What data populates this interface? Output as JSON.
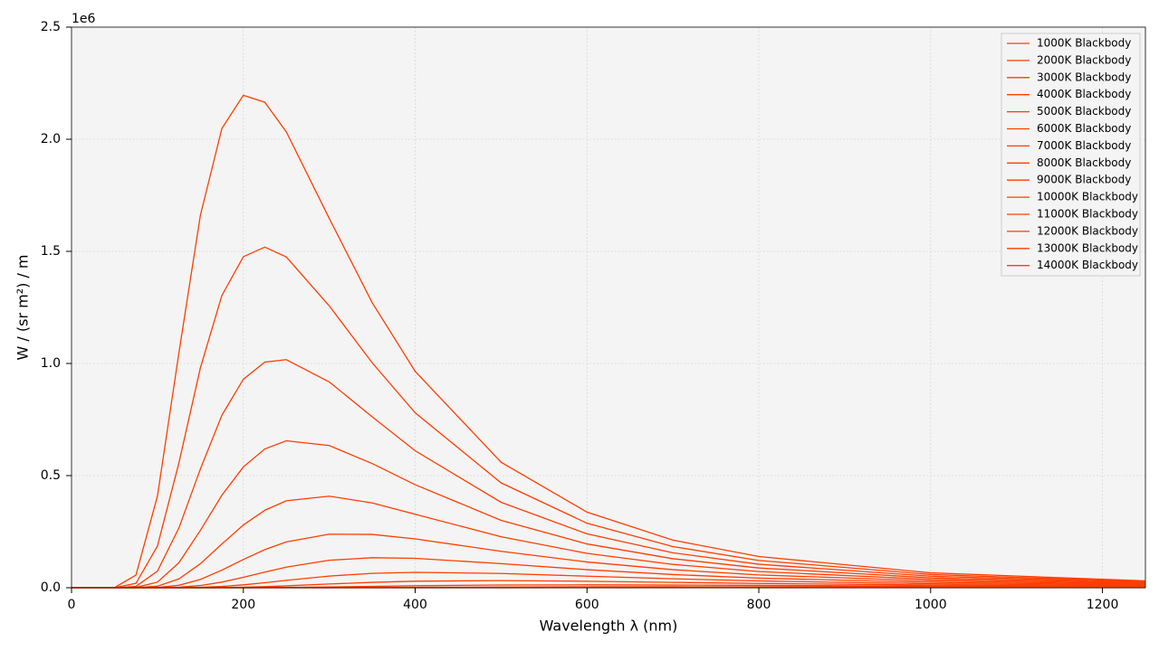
{
  "chart_data": {
    "type": "line",
    "x_label": "Wavelength λ (nm)",
    "y_label": "W / (sr m²) / m",
    "y_offset_label": "1e6",
    "x": [
      0,
      50,
      75,
      100,
      125,
      150,
      175,
      200,
      225,
      250,
      300,
      350,
      400,
      500,
      600,
      700,
      800,
      1000,
      1250
    ],
    "xlim": [
      0,
      1250
    ],
    "xticks": [
      0,
      200,
      400,
      600,
      800,
      1000,
      1200
    ],
    "ylim": [
      0,
      2500000
    ],
    "yticks": [
      {
        "value": 0,
        "label": "0.0"
      },
      {
        "value": 500000,
        "label": "0.5"
      },
      {
        "value": 1000000,
        "label": "1.0"
      },
      {
        "value": 1500000,
        "label": "1.5"
      },
      {
        "value": 2000000,
        "label": "2.0"
      },
      {
        "value": 2500000,
        "label": "2.5"
      }
    ],
    "grid": true,
    "legend": "upper right",
    "series": [
      {
        "name": "1000K Blackbody",
        "color": "#ff3d00",
        "values": [
          0,
          0,
          0,
          0,
          0,
          0,
          0,
          0,
          0,
          0,
          0,
          0,
          0,
          0,
          0,
          0,
          0,
          0,
          0
        ]
      },
      {
        "name": "2000K Blackbody",
        "color": "#ff3d00",
        "values": [
          0,
          0,
          0,
          0,
          0,
          0,
          0,
          0,
          0,
          0,
          0,
          0,
          0,
          2,
          10,
          24,
          45,
          89,
          124
        ]
      },
      {
        "name": "3000K Blackbody",
        "color": "#ff3d00",
        "values": [
          0,
          0,
          0,
          0,
          0,
          0,
          0,
          0,
          0,
          1,
          6,
          25,
          72,
          260,
          517,
          751,
          908,
          993,
          859
        ]
      },
      {
        "name": "4000K Blackbody",
        "color": "#ff3d00",
        "values": [
          0,
          0,
          0,
          0,
          0,
          0,
          1,
          6,
          24,
          69,
          304,
          778,
          1446,
          2861,
          3826,
          4180,
          4097,
          3355,
          2327
        ]
      },
      {
        "name": "5000K Blackbody",
        "color": "#ff3d00",
        "values": [
          0,
          0,
          0,
          0,
          0,
          7,
          52,
          210,
          576,
          1224,
          3347,
          6090,
          8731,
          12110,
          12770,
          11810,
          10240,
          7102,
          4340
        ]
      },
      {
        "name": "6000K Blackbody",
        "color": "#ff3d00",
        "values": [
          0,
          0,
          0,
          0,
          18,
          179,
          813,
          2311,
          4853,
          8333,
          16550,
          24030,
          29050,
          31760,
          28690,
          23820,
          19090,
          11910,
          6716
        ]
      },
      {
        "name": "7000K Blackbody",
        "color": "#ff3d00",
        "values": [
          0,
          0,
          0,
          14,
          281,
          1756,
          5756,
          12770,
          22280,
          32760,
          51920,
          64000,
          68610,
          63520,
          51500,
          39710,
          30160,
          17490,
          9344
        ]
      },
      {
        "name": "8000K Blackbody",
        "color": "#ff3d00",
        "values": [
          0,
          0,
          2,
          185,
          2200,
          9740,
          24900,
          46270,
          69720,
          91600,
          122400,
          133800,
          131100,
          107400,
          80460,
          58800,
          42900,
          23630,
          12130
        ]
      },
      {
        "name": "9000K Blackbody",
        "color": "#ff3d00",
        "values": [
          0,
          0,
          28,
          1358,
          10890,
          36850,
          78300,
          125700,
          169700,
          204000,
          238800,
          237700,
          217800,
          162400,
          114700,
          80370,
          57000,
          30180,
          15050
        ]
      },
      {
        "name": "10000K Blackbody",
        "color": "#ff3d00",
        "values": [
          0,
          0,
          234,
          6720,
          39140,
          107100,
          194900,
          279600,
          345300,
          387500,
          408400,
          378000,
          327600,
          227300,
          153200,
          104000,
          72090,
          37030,
          18060
        ]
      },
      {
        "name": "11000K Blackbody",
        "color": "#ff3d00",
        "values": [
          0,
          2,
          1335,
          24900,
          111300,
          255800,
          412200,
          538600,
          618800,
          655200,
          634000,
          553600,
          459500,
          300600,
          195300,
          129300,
          88000,
          44130,
          21130
        ]
      },
      {
        "name": "12000K Blackbody",
        "color": "#ff3d00",
        "values": [
          0,
          15,
          5720,
          74000,
          266500,
          529400,
          768900,
          929600,
          1006000,
          1017000,
          917800,
          762300,
          610800,
          381100,
          240300,
          155900,
          104500,
          51400,
          24250
        ]
      },
      {
        "name": "13000K Blackbody",
        "color": "#ff3d00",
        "values": [
          0,
          93,
          19600,
          185700,
          556800,
          980600,
          1303000,
          1476000,
          1519000,
          1475000,
          1257000,
          1003000,
          780000,
          467700,
          287600,
          183500,
          121600,
          58800,
          27400
        ]
      },
      {
        "name": "14000K Blackbody",
        "color": "#ff3d00",
        "values": [
          0,
          453,
          56200,
          408500,
          1047700,
          1661000,
          2048000,
          2196000,
          2165000,
          2033000,
          1647000,
          1271000,
          965000,
          559600,
          337100,
          212100,
          139000,
          66350,
          30600
        ]
      }
    ]
  }
}
